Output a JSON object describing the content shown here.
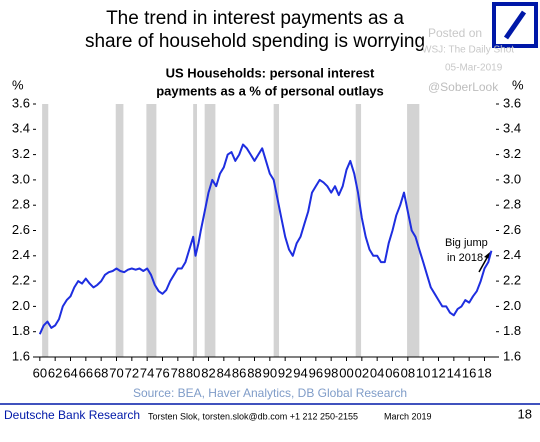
{
  "header": {
    "title_lines": [
      "The trend in interest payments as a",
      "share of household spending is worrying"
    ],
    "posted_lines": [
      "Posted on",
      "WSJ: The Daily Shot",
      "05-Mar-2019"
    ],
    "handle": "@SoberLook"
  },
  "chart_data": {
    "type": "line",
    "subtitle_lines": [
      "US Households: personal interest",
      "payments as a % of personal outlays"
    ],
    "ylabel": "%",
    "y2label": "%",
    "xlim": [
      1959.5,
      2019.5
    ],
    "xticks": [
      {
        "value": 1960,
        "label": "60"
      },
      {
        "value": 1962,
        "label": "62"
      },
      {
        "value": 1964,
        "label": "64"
      },
      {
        "value": 1966,
        "label": "66"
      },
      {
        "value": 1968,
        "label": "68"
      },
      {
        "value": 1970,
        "label": "70"
      },
      {
        "value": 1972,
        "label": "72"
      },
      {
        "value": 1974,
        "label": "74"
      },
      {
        "value": 1976,
        "label": "76"
      },
      {
        "value": 1978,
        "label": "78"
      },
      {
        "value": 1980,
        "label": "80"
      },
      {
        "value": 1982,
        "label": "82"
      },
      {
        "value": 1984,
        "label": "84"
      },
      {
        "value": 1986,
        "label": "86"
      },
      {
        "value": 1988,
        "label": "88"
      },
      {
        "value": 1990,
        "label": "90"
      },
      {
        "value": 1992,
        "label": "92"
      },
      {
        "value": 1994,
        "label": "94"
      },
      {
        "value": 1996,
        "label": "96"
      },
      {
        "value": 1998,
        "label": "98"
      },
      {
        "value": 2000,
        "label": "00"
      },
      {
        "value": 2002,
        "label": "02"
      },
      {
        "value": 2004,
        "label": "04"
      },
      {
        "value": 2006,
        "label": "06"
      },
      {
        "value": 2008,
        "label": "08"
      },
      {
        "value": 2010,
        "label": "10"
      },
      {
        "value": 2012,
        "label": "12"
      },
      {
        "value": 2014,
        "label": "14"
      },
      {
        "value": 2016,
        "label": "16"
      },
      {
        "value": 2018,
        "label": "18"
      }
    ],
    "ylim": [
      1.6,
      3.6
    ],
    "yticks": [
      1.6,
      1.8,
      {
        "value": 2,
        "label": "2.0"
      },
      2.2,
      2.4,
      2.6,
      2.8,
      {
        "value": 3,
        "label": "3.0"
      },
      3.2,
      3.4,
      3.6
    ],
    "y2lim": [
      1.6,
      3.6
    ],
    "y2ticks": [
      1.6,
      1.8,
      {
        "value": 2,
        "label": "2.0"
      },
      2.2,
      2.4,
      2.6,
      2.8,
      {
        "value": 3,
        "label": "3.0"
      },
      3.2,
      3.4,
      3.6
    ],
    "shaded_periods": [
      [
        1960.3,
        1961.1
      ],
      [
        1969.9,
        1970.9
      ],
      [
        1973.9,
        1975.2
      ],
      [
        1980.0,
        1980.5
      ],
      [
        1981.5,
        1982.9
      ],
      [
        1990.5,
        1991.2
      ],
      [
        2001.2,
        2001.9
      ],
      [
        2007.9,
        2009.5
      ]
    ],
    "shade_color": "#d3d3d3",
    "x": [
      1960,
      1960.5,
      1961,
      1961.5,
      1962,
      1962.5,
      1963,
      1963.5,
      1964,
      1964.5,
      1965,
      1965.5,
      1966,
      1966.5,
      1967,
      1967.5,
      1968,
      1968.5,
      1969,
      1969.5,
      1970,
      1970.5,
      1971,
      1971.5,
      1972,
      1972.5,
      1973,
      1973.5,
      1974,
      1974.5,
      1975,
      1975.5,
      1976,
      1976.5,
      1977,
      1977.5,
      1978,
      1978.5,
      1979,
      1979.5,
      1980,
      1980.3,
      1980.7,
      1981,
      1981.5,
      1982,
      1982.5,
      1983,
      1983.5,
      1984,
      1984.5,
      1985,
      1985.5,
      1986,
      1986.5,
      1987,
      1987.5,
      1988,
      1988.5,
      1989,
      1989.5,
      1990,
      1990.5,
      1991,
      1991.5,
      1992,
      1992.5,
      1993,
      1993.5,
      1994,
      1994.5,
      1995,
      1995.5,
      1996,
      1996.5,
      1997,
      1997.5,
      1998,
      1998.5,
      1999,
      1999.5,
      2000,
      2000.5,
      2001,
      2001.5,
      2002,
      2002.5,
      2003,
      2003.5,
      2004,
      2004.5,
      2005,
      2005.5,
      2006,
      2006.5,
      2007,
      2007.5,
      2008,
      2008.5,
      2009,
      2009.5,
      2010,
      2010.5,
      2011,
      2011.5,
      2012,
      2012.5,
      2013,
      2013.5,
      2014,
      2014.5,
      2015,
      2015.5,
      2016,
      2016.5,
      2017,
      2017.5,
      2018,
      2018.5,
      2018.9
    ],
    "series": [
      {
        "name": "Personal interest payments",
        "color": "#1e2ee0",
        "values": [
          1.78,
          1.85,
          1.88,
          1.83,
          1.85,
          1.9,
          2.0,
          2.05,
          2.08,
          2.15,
          2.2,
          2.18,
          2.22,
          2.18,
          2.15,
          2.17,
          2.2,
          2.25,
          2.27,
          2.28,
          2.3,
          2.28,
          2.27,
          2.29,
          2.3,
          2.29,
          2.3,
          2.28,
          2.3,
          2.25,
          2.17,
          2.12,
          2.1,
          2.13,
          2.2,
          2.25,
          2.3,
          2.3,
          2.35,
          2.45,
          2.55,
          2.4,
          2.5,
          2.6,
          2.75,
          2.9,
          3.0,
          2.95,
          3.05,
          3.1,
          3.2,
          3.22,
          3.15,
          3.2,
          3.28,
          3.25,
          3.2,
          3.15,
          3.2,
          3.25,
          3.15,
          3.05,
          3.0,
          2.85,
          2.7,
          2.55,
          2.45,
          2.4,
          2.5,
          2.55,
          2.65,
          2.75,
          2.9,
          2.95,
          3.0,
          2.98,
          2.95,
          2.9,
          2.95,
          2.88,
          2.95,
          3.08,
          3.15,
          3.05,
          2.9,
          2.7,
          2.55,
          2.45,
          2.4,
          2.4,
          2.35,
          2.35,
          2.5,
          2.6,
          2.72,
          2.8,
          2.9,
          2.75,
          2.6,
          2.55,
          2.45,
          2.35,
          2.25,
          2.15,
          2.1,
          2.05,
          2.0,
          2.0,
          1.95,
          1.93,
          1.98,
          2.0,
          2.05,
          2.03,
          2.08,
          2.12,
          2.2,
          2.3,
          2.35,
          2.44
        ]
      }
    ],
    "annotation_lines": [
      "Big jump",
      "in 2018"
    ],
    "source": "Source: BEA, Haver Analytics, DB Global Research"
  },
  "footer": {
    "brand": "Deutsche Bank Research",
    "contact": "Torsten Slok, torsten.slok@db.com  +1 212 250-2155",
    "date": "March 2019",
    "page": "18"
  }
}
